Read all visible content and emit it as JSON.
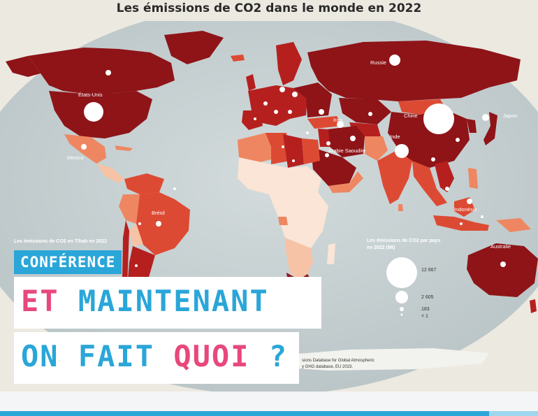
{
  "title": "Les émissions de CO2 dans le monde en 2022",
  "countries": {
    "usa": "États-Unis",
    "mexico": "Mexico",
    "brazil": "Brésil",
    "russia": "Russie",
    "china": "Chine",
    "japan": "Japon",
    "iran": "Iran",
    "saudi": "Arabie Saoudite",
    "india": "Inde",
    "indonesia": "Indonésie",
    "australia": "Australie"
  },
  "legend_left_title": "Les émissions de CO2 en T/hab en 2022",
  "legend_right": {
    "title_line1": "Les émissions de CO2 par pays",
    "title_line2": "en 2022 (Mt)",
    "values": [
      "12 667",
      "2 605",
      "183",
      "< 1"
    ]
  },
  "source": {
    "line1": "sions Database for Global Atmospheric",
    "line2": "y GHG database, EU 2023."
  },
  "overlay": {
    "tag": "CONFÉRENCE",
    "line1_a": "ET",
    "line1_b": "MAINTENANT",
    "line2_a": "ON FAIT",
    "line2_b": "QUOI",
    "line2_c": "?"
  },
  "colors": {
    "darkest": "#8e1418",
    "dark": "#b5201f",
    "mid": "#dd4a33",
    "light": "#ee8761",
    "pale": "#f6c3a6",
    "palest": "#fbe5d6",
    "ocean": "#c8d2d3",
    "accent_blue": "#2aa6d8",
    "accent_pink": "#e8487c"
  }
}
